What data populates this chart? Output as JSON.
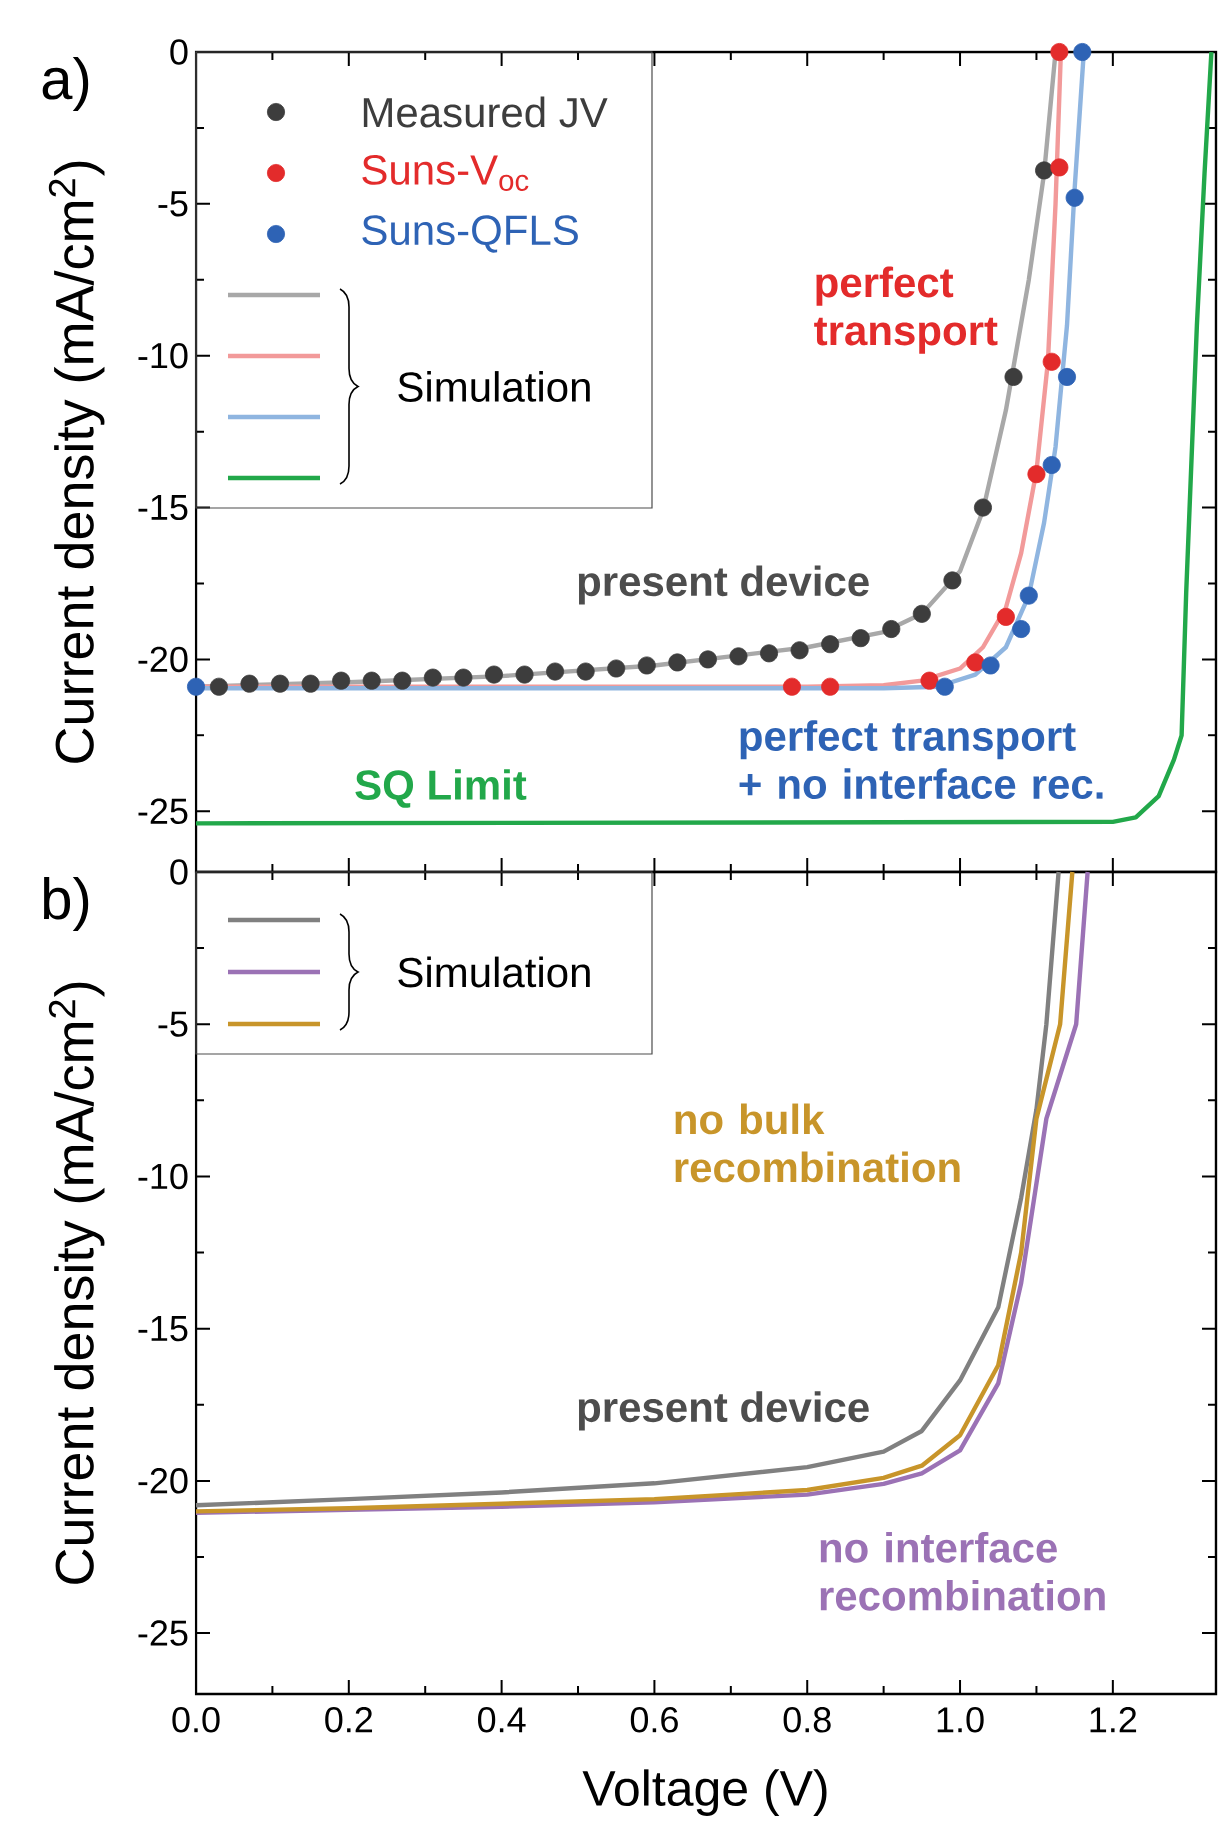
{
  "chart_data": [
    {
      "type": "line",
      "title": "a)",
      "ylabel": "Current density (mA/cm$^{2}$)",
      "xlim": [
        0,
        1.335
      ],
      "ylim": [
        -27,
        0
      ],
      "xticks": [
        {
          "value": 0,
          "label": null
        },
        {
          "value": 0.2,
          "label": null
        },
        {
          "value": 0.4,
          "label": null
        },
        {
          "value": 0.6,
          "label": null
        },
        {
          "value": 0.8,
          "label": null
        },
        {
          "value": 1.0,
          "label": null
        },
        {
          "value": 1.2,
          "label": null
        }
      ],
      "yticks": [
        -25,
        -20,
        -15,
        -10,
        -5,
        0
      ],
      "tick_labels": "y",
      "legend": "top left",
      "series": [
        {
          "type": "scatter",
          "marker": "circle",
          "name": "Measured JV",
          "color": "#3d3d3d",
          "x": [
            0.03,
            0.07,
            0.11,
            0.15,
            0.19,
            0.23,
            0.27,
            0.31,
            0.35,
            0.39,
            0.43,
            0.47,
            0.51,
            0.55,
            0.59,
            0.63,
            0.67,
            0.71,
            0.75,
            0.79,
            0.83,
            0.87,
            0.91,
            0.95,
            0.99,
            1.03,
            1.07,
            1.11
          ],
          "values": [
            -20.9,
            -20.8,
            -20.8,
            -20.8,
            -20.7,
            -20.7,
            -20.7,
            -20.6,
            -20.6,
            -20.5,
            -20.5,
            -20.4,
            -20.4,
            -20.3,
            -20.2,
            -20.1,
            -20.0,
            -19.9,
            -19.8,
            -19.7,
            -19.5,
            -19.3,
            -19.0,
            -18.5,
            -17.4,
            -15.0,
            -10.7,
            -3.9
          ]
        },
        {
          "type": "scatter",
          "marker": "circle",
          "name": "Suns-V$_{oc}$",
          "color": "#e32b2b",
          "x": [
            0.78,
            0.83,
            0.96,
            1.02,
            1.06,
            1.1,
            1.12,
            1.13,
            1.13
          ],
          "values": [
            -20.9,
            -20.9,
            -20.7,
            -20.1,
            -18.6,
            -13.9,
            -10.2,
            -3.8,
            0
          ]
        },
        {
          "type": "scatter",
          "marker": "circle",
          "name": "Suns-QFLS",
          "color": "#2e63b5",
          "x": [
            0,
            0.98,
            1.04,
            1.08,
            1.09,
            1.12,
            1.14,
            1.15,
            1.16
          ],
          "values": [
            -20.9,
            -20.9,
            -20.2,
            -19.0,
            -17.9,
            -13.6,
            -10.7,
            -4.8,
            0
          ]
        },
        {
          "color": "#a8a8a8",
          "x": [
            0,
            0.2,
            0.4,
            0.6,
            0.8,
            0.9,
            0.95,
            1.0,
            1.03,
            1.06,
            1.09,
            1.11,
            1.125
          ],
          "values": [
            -20.9,
            -20.75,
            -20.55,
            -20.2,
            -19.6,
            -19.1,
            -18.5,
            -17.1,
            -15.1,
            -11.8,
            -7.5,
            -4.0,
            0
          ]
        },
        {
          "color": "#f29a9a",
          "x": [
            0,
            0.8,
            0.9,
            0.95,
            1.0,
            1.03,
            1.06,
            1.08,
            1.1,
            1.115,
            1.125,
            1.132
          ],
          "values": [
            -20.9,
            -20.9,
            -20.85,
            -20.7,
            -20.3,
            -19.6,
            -18.3,
            -16.5,
            -13.8,
            -10.2,
            -5.0,
            0
          ]
        },
        {
          "color": "#8fb5e0",
          "x": [
            0,
            0.9,
            0.97,
            1.02,
            1.06,
            1.09,
            1.11,
            1.125,
            1.14,
            1.15,
            1.162
          ],
          "values": [
            -20.95,
            -20.95,
            -20.9,
            -20.5,
            -19.6,
            -17.9,
            -15.5,
            -13.0,
            -9.0,
            -4.5,
            0
          ]
        },
        {
          "color": "#22a84a",
          "x": [
            0,
            1.2,
            1.23,
            1.26,
            1.28,
            1.29,
            1.296,
            1.31,
            1.32,
            1.329
          ],
          "values": [
            -25.4,
            -25.35,
            -25.2,
            -24.5,
            -23.3,
            -22.5,
            -17.8,
            -9.0,
            -4.0,
            0
          ]
        }
      ],
      "annotations": [
        "Simulation",
        "perfect transport",
        "present device",
        "perfect transport + no interface rec.",
        "SQ Limit"
      ]
    },
    {
      "type": "line",
      "title": "b)",
      "xlabel": "Voltage (V)",
      "ylabel": "Current density (mA/cm$^{2}$)",
      "xlim": [
        0,
        1.335
      ],
      "ylim": [
        -27,
        0
      ],
      "xticks": [
        {
          "value": 0,
          "label": "0.0"
        },
        {
          "value": 0.2,
          "label": "0.2"
        },
        {
          "value": 0.4,
          "label": "0.4"
        },
        {
          "value": 0.6,
          "label": "0.6"
        },
        {
          "value": 0.8,
          "label": "0.8"
        },
        {
          "value": 1.0,
          "label": "1.0"
        },
        {
          "value": 1.2,
          "label": "1.2"
        }
      ],
      "yticks": [
        -25,
        -20,
        -15,
        -10,
        -5,
        0
      ],
      "series": [
        {
          "color": "#808080",
          "x": [
            0,
            0.2,
            0.4,
            0.6,
            0.8,
            0.9,
            0.95,
            1.0,
            1.05,
            1.08,
            1.1,
            1.113,
            1.129
          ],
          "values": [
            -20.8,
            -20.6,
            -20.38,
            -20.08,
            -19.55,
            -19.04,
            -18.36,
            -16.7,
            -14.3,
            -10.7,
            -7.8,
            -5.0,
            0
          ]
        },
        {
          "color": "#9b72b5",
          "x": [
            0,
            0.2,
            0.4,
            0.6,
            0.8,
            0.9,
            0.95,
            1.0,
            1.05,
            1.08,
            1.113,
            1.152,
            1.167
          ],
          "values": [
            -21.05,
            -20.95,
            -20.85,
            -20.7,
            -20.45,
            -20.1,
            -19.75,
            -19.0,
            -16.8,
            -13.5,
            -8.1,
            -5.0,
            0
          ]
        },
        {
          "color": "#c8952a",
          "x": [
            0,
            0.2,
            0.4,
            0.6,
            0.8,
            0.9,
            0.95,
            1.0,
            1.05,
            1.08,
            1.1,
            1.131,
            1.147
          ],
          "values": [
            -21.0,
            -20.9,
            -20.75,
            -20.6,
            -20.3,
            -19.9,
            -19.5,
            -18.5,
            -16.2,
            -12.5,
            -8.1,
            -5.0,
            0
          ]
        }
      ],
      "annotations": [
        "Simulation",
        "no bulk recombination",
        "present device",
        "no interface recombination"
      ]
    }
  ]
}
